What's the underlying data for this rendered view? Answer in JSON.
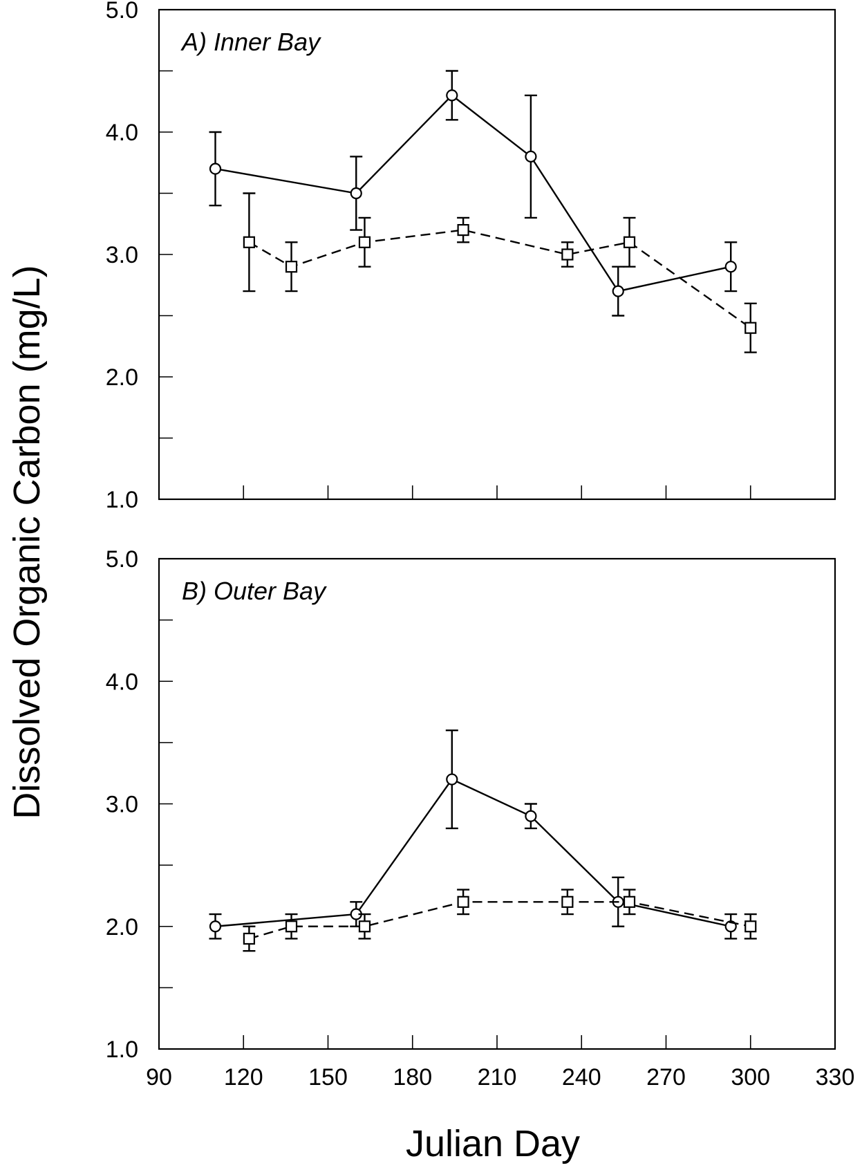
{
  "chart_data": [
    {
      "type": "line",
      "panel": "A",
      "title": "A) Inner Bay",
      "xlim": [
        90,
        330
      ],
      "ylim": [
        1.0,
        5.0
      ],
      "xticks": [
        90,
        120,
        150,
        180,
        210,
        240,
        270,
        300,
        330
      ],
      "yticks": [
        1.0,
        2.0,
        3.0,
        4.0,
        5.0
      ],
      "yminor_ticks": [
        1.5,
        2.5,
        3.5,
        4.5
      ],
      "series": [
        {
          "marker": "circle",
          "line": "solid",
          "points": [
            {
              "x": 110,
              "y": 3.7,
              "err": 0.3
            },
            {
              "x": 160,
              "y": 3.5,
              "err": 0.3
            },
            {
              "x": 194,
              "y": 4.3,
              "err": 0.2
            },
            {
              "x": 222,
              "y": 3.8,
              "err": 0.5
            },
            {
              "x": 253,
              "y": 2.7,
              "err": 0.2
            },
            {
              "x": 293,
              "y": 2.9,
              "err": 0.2
            }
          ]
        },
        {
          "marker": "square",
          "line": "dashed",
          "points": [
            {
              "x": 122,
              "y": 3.1,
              "err": 0.4
            },
            {
              "x": 137,
              "y": 2.9,
              "err": 0.2
            },
            {
              "x": 163,
              "y": 3.1,
              "err": 0.2
            },
            {
              "x": 198,
              "y": 3.2,
              "err": 0.1
            },
            {
              "x": 235,
              "y": 3.0,
              "err": 0.1
            },
            {
              "x": 257,
              "y": 3.1,
              "err": 0.2
            },
            {
              "x": 300,
              "y": 2.4,
              "err": 0.2
            }
          ]
        }
      ]
    },
    {
      "type": "line",
      "panel": "B",
      "title": "B) Outer Bay",
      "xlim": [
        90,
        330
      ],
      "ylim": [
        1.0,
        5.0
      ],
      "xticks": [
        90,
        120,
        150,
        180,
        210,
        240,
        270,
        300,
        330
      ],
      "xtick_labels": [
        "90",
        "120",
        "150",
        "180",
        "210",
        "240",
        "270",
        "300",
        "330"
      ],
      "yticks": [
        1.0,
        2.0,
        3.0,
        4.0,
        5.0
      ],
      "yminor_ticks": [
        1.5,
        2.5,
        3.5,
        4.5
      ],
      "series": [
        {
          "marker": "circle",
          "line": "solid",
          "points": [
            {
              "x": 110,
              "y": 2.0,
              "err": 0.1
            },
            {
              "x": 160,
              "y": 2.1,
              "err": 0.1
            },
            {
              "x": 194,
              "y": 3.2,
              "err": 0.4
            },
            {
              "x": 222,
              "y": 2.9,
              "err": 0.1
            },
            {
              "x": 253,
              "y": 2.2,
              "err": 0.2
            },
            {
              "x": 293,
              "y": 2.0,
              "err": 0.1
            }
          ]
        },
        {
          "marker": "square",
          "line": "dashed",
          "points": [
            {
              "x": 122,
              "y": 1.9,
              "err": 0.1
            },
            {
              "x": 137,
              "y": 2.0,
              "err": 0.1
            },
            {
              "x": 163,
              "y": 2.0,
              "err": 0.1
            },
            {
              "x": 198,
              "y": 2.2,
              "err": 0.1
            },
            {
              "x": 235,
              "y": 2.2,
              "err": 0.1
            },
            {
              "x": 257,
              "y": 2.2,
              "err": 0.1
            },
            {
              "x": 300,
              "y": 2.0,
              "err": 0.1
            }
          ]
        }
      ]
    }
  ],
  "labels": {
    "ylabel": "Dissolved Organic Carbon (mg/L)",
    "xlabel": "Julian Day"
  }
}
